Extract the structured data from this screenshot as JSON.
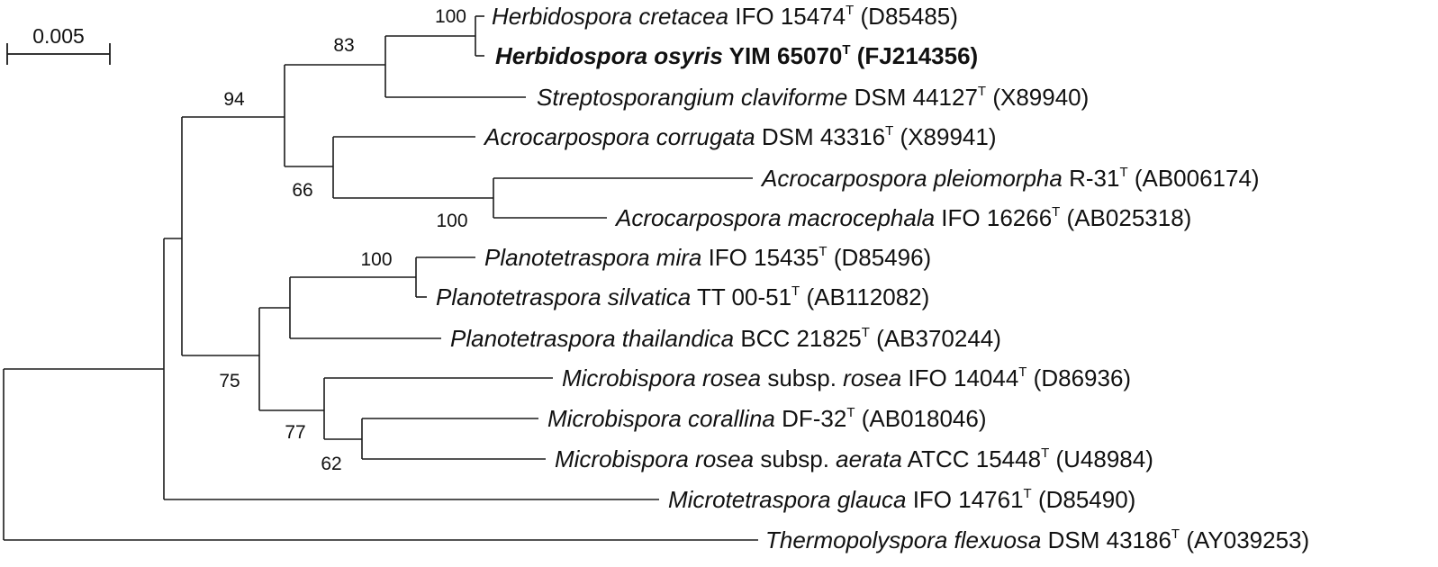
{
  "scale_bar": {
    "label": "0.005"
  },
  "taxa": [
    {
      "id": "herbidospora-cretacea",
      "genus": "Herbidospora",
      "epithet": "cretacea",
      "strain": "IFO 15474",
      "type_mark": "T",
      "accession": "(D85485)",
      "bold": false
    },
    {
      "id": "herbidospora-osyris",
      "genus": "Herbidospora",
      "epithet": "osyris",
      "strain": "YIM 65070",
      "type_mark": "T",
      "accession": "(FJ214356)",
      "bold": true
    },
    {
      "id": "streptosporangium-claviforme",
      "genus": "Streptosporangium",
      "epithet": "claviforme",
      "strain": "DSM 44127",
      "type_mark": "T",
      "accession": "(X89940)",
      "bold": false
    },
    {
      "id": "acrocarpospora-corrugata",
      "genus": "Acrocarpospora",
      "epithet": "corrugata",
      "strain": "DSM 43316",
      "type_mark": "T",
      "accession": "(X89941)",
      "bold": false
    },
    {
      "id": "acrocarpospora-pleiomorpha",
      "genus": "Acrocarpospora",
      "epithet": "pleiomorpha",
      "strain": "R-31",
      "type_mark": "T",
      "accession": "(AB006174)",
      "bold": false
    },
    {
      "id": "acrocarpospora-macrocephala",
      "genus": "Acrocarpospora",
      "epithet": "macrocephala",
      "strain": "IFO 16266",
      "type_mark": "T",
      "accession": "(AB025318)",
      "bold": false
    },
    {
      "id": "planotetraspora-mira",
      "genus": "Planotetraspora",
      "epithet": "mira",
      "strain": "IFO 15435",
      "type_mark": "T",
      "accession": "(D85496)",
      "bold": false
    },
    {
      "id": "planotetraspora-silvatica",
      "genus": "Planotetraspora",
      "epithet": "silvatica",
      "strain": "TT 00-51",
      "type_mark": "T",
      "accession": "(AB112082)",
      "bold": false
    },
    {
      "id": "planotetraspora-thailandica",
      "genus": "Planotetraspora",
      "epithet": "thailandica",
      "strain": "BCC 21825",
      "type_mark": "T",
      "accession": "(AB370244)",
      "bold": false
    },
    {
      "id": "microbispora-rosea-rosea",
      "genus": "Microbispora",
      "epithet": "rosea",
      "subsp_word": "subsp.",
      "subsp": "rosea",
      "strain": "IFO 14044",
      "type_mark": "T",
      "accession": "(D86936)",
      "bold": false
    },
    {
      "id": "microbispora-corallina",
      "genus": "Microbispora",
      "epithet": "corallina",
      "strain": "DF-32",
      "type_mark": "T",
      "accession": "(AB018046)",
      "bold": false
    },
    {
      "id": "microbispora-rosea-aerata",
      "genus": "Microbispora",
      "epithet": "rosea",
      "subsp_word": "subsp.",
      "subsp": "aerata",
      "strain": "ATCC 15448",
      "type_mark": "T",
      "accession": "(U48984)",
      "bold": false
    },
    {
      "id": "microtetraspora-glauca",
      "genus": "Microtetraspora",
      "epithet": "glauca",
      "strain": "IFO 14761",
      "type_mark": "T",
      "accession": "(D85490)",
      "bold": false
    },
    {
      "id": "thermopolyspora-flexuosa",
      "genus": "Thermopolyspora",
      "epithet": "flexuosa",
      "strain": "DSM 43186",
      "type_mark": "T",
      "accession": "(AY039253)",
      "bold": false
    }
  ],
  "bootstrap": {
    "herbidospora_pair": "100",
    "herbidospora_streptosporangium": "83",
    "upper_clade": "94",
    "acrocarpospora_clade": "66",
    "acrocarpospora_pair": "100",
    "planotetraspora_pair": "100",
    "lower_clade": "75",
    "microbispora_clade": "77",
    "microbispora_pair": "62"
  }
}
